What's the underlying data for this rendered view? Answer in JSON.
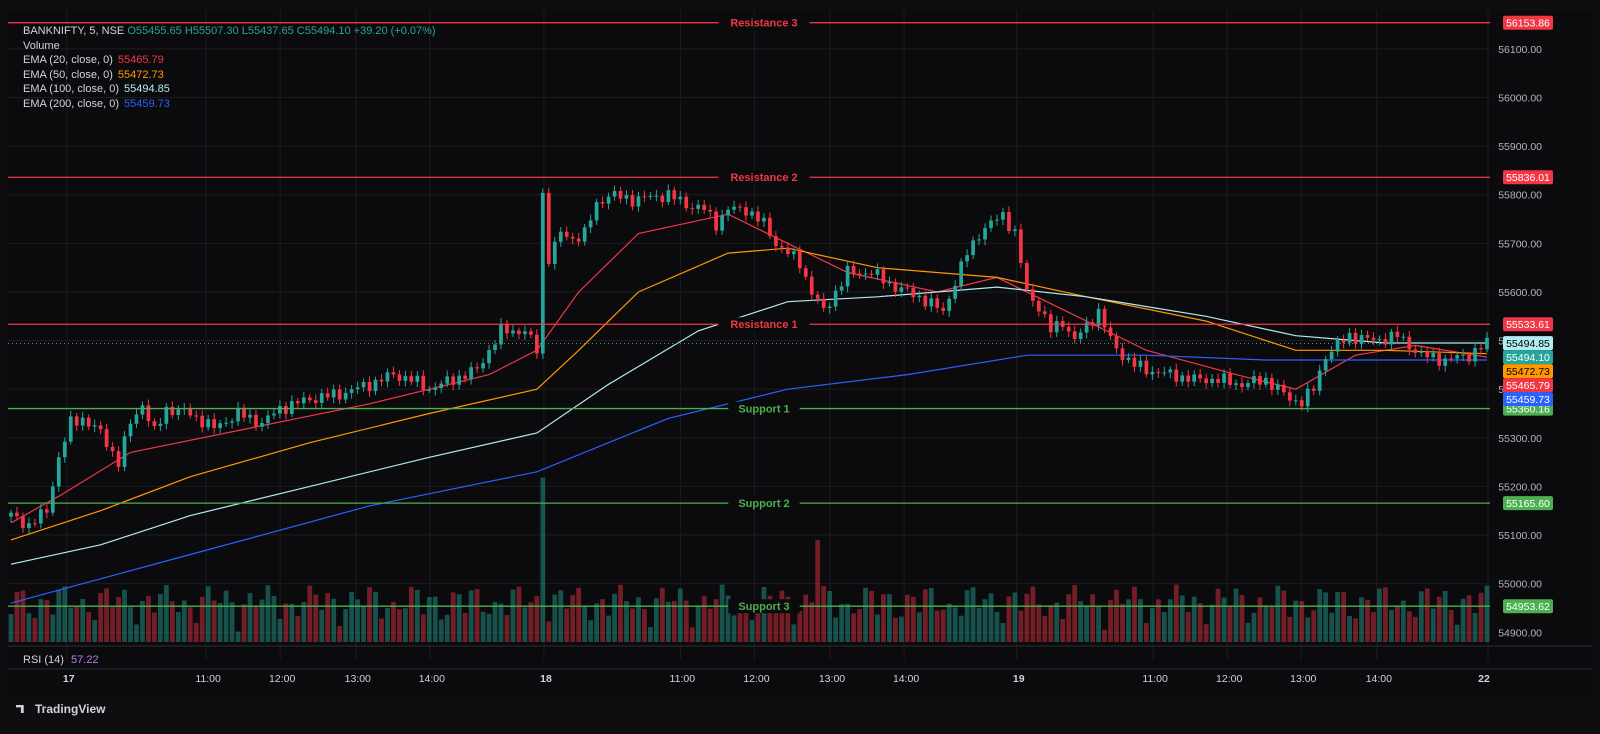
{
  "symbol": {
    "name": "BANKNIFTY",
    "interval": "5",
    "exchange": "NSE"
  },
  "header": {
    "symbol_line": "BANKNIFTY, 5, NSE",
    "ohlc": "O55455.65  H55507.30  L55437.65  C55494.10  +39.20 (+0.07%)"
  },
  "indicators": [
    {
      "label": "Volume",
      "value": "",
      "color": "#d1d4dc"
    },
    {
      "label": "EMA (20, close, 0)",
      "value": "55465.79",
      "color": "#f23645"
    },
    {
      "label": "EMA (50, close, 0)",
      "value": "55472.73",
      "color": "#ff9800"
    },
    {
      "label": "EMA (100, close, 0)",
      "value": "55494.85",
      "color": "#b2ebf2"
    },
    {
      "label": "EMA (200, close, 0)",
      "value": "55459.73",
      "color": "#2962ff"
    }
  ],
  "rsi": {
    "label": "RSI (14)",
    "value": "57.22"
  },
  "branding": "TradingView",
  "colors": {
    "up": "#26a69a",
    "down": "#f23645",
    "resistance": "#f23645",
    "support": "#4caf50",
    "background": "#0b0b0d"
  },
  "price_tags": [
    {
      "value": "55494.85",
      "bg": "#b2ebf2",
      "fg": "#000000"
    },
    {
      "value": "55494.10",
      "bg": "#26a69a",
      "fg": "#ffffff"
    },
    {
      "value": "55472.73",
      "bg": "#ff9800",
      "fg": "#000000"
    },
    {
      "value": "55465.79",
      "bg": "#f23645",
      "fg": "#ffffff"
    },
    {
      "value": "55459.73",
      "bg": "#2962ff",
      "fg": "#ffffff"
    }
  ],
  "chart_data": {
    "type": "candlestick",
    "ylim": [
      54880,
      56180
    ],
    "y_ticks": [
      54900,
      55000,
      55100,
      55200,
      55300,
      55400,
      55500,
      55600,
      55700,
      55800,
      55900,
      56000,
      56100
    ],
    "x_ticks": [
      {
        "label": "17",
        "bold": true,
        "pos": 0.041
      },
      {
        "label": "11:00",
        "bold": false,
        "pos": 0.135
      },
      {
        "label": "12:00",
        "bold": false,
        "pos": 0.185
      },
      {
        "label": "13:00",
        "bold": false,
        "pos": 0.236
      },
      {
        "label": "14:00",
        "bold": false,
        "pos": 0.286
      },
      {
        "label": "18",
        "bold": true,
        "pos": 0.363
      },
      {
        "label": "11:00",
        "bold": false,
        "pos": 0.455
      },
      {
        "label": "12:00",
        "bold": false,
        "pos": 0.505
      },
      {
        "label": "13:00",
        "bold": false,
        "pos": 0.556
      },
      {
        "label": "14:00",
        "bold": false,
        "pos": 0.606
      },
      {
        "label": "19",
        "bold": true,
        "pos": 0.682
      },
      {
        "label": "11:00",
        "bold": false,
        "pos": 0.774
      },
      {
        "label": "12:00",
        "bold": false,
        "pos": 0.824
      },
      {
        "label": "13:00",
        "bold": false,
        "pos": 0.874
      },
      {
        "label": "14:00",
        "bold": false,
        "pos": 0.925
      },
      {
        "label": "22",
        "bold": true,
        "pos": 1.0
      }
    ],
    "levels": [
      {
        "name": "Resistance 3",
        "value": 56153.86,
        "kind": "resistance"
      },
      {
        "name": "Resistance 2",
        "value": 55836.01,
        "kind": "resistance"
      },
      {
        "name": "Resistance 1",
        "value": 55533.61,
        "kind": "resistance"
      },
      {
        "name": "Support 1",
        "value": 55360.16,
        "kind": "support"
      },
      {
        "name": "Support 2",
        "value": 55165.6,
        "kind": "support"
      },
      {
        "name": "Support 3",
        "value": 54953.62,
        "kind": "support"
      }
    ],
    "last_price": 55494.1,
    "close_series": [
      [
        0,
        55140
      ],
      [
        3,
        55120
      ],
      [
        6,
        55150
      ],
      [
        8,
        55260
      ],
      [
        10,
        55330
      ],
      [
        12,
        55340
      ],
      [
        15,
        55310
      ],
      [
        18,
        55250
      ],
      [
        20,
        55330
      ],
      [
        22,
        55370
      ],
      [
        24,
        55310
      ],
      [
        26,
        55360
      ],
      [
        30,
        55350
      ],
      [
        34,
        55320
      ],
      [
        38,
        55350
      ],
      [
        42,
        55330
      ],
      [
        45,
        55360
      ],
      [
        50,
        55380
      ],
      [
        55,
        55390
      ],
      [
        60,
        55410
      ],
      [
        64,
        55430
      ],
      [
        67,
        55420
      ],
      [
        70,
        55400
      ],
      [
        74,
        55420
      ],
      [
        78,
        55440
      ],
      [
        80,
        55480
      ],
      [
        82,
        55520
      ],
      [
        86,
        55520
      ],
      [
        88,
        55480
      ],
      [
        89,
        55800
      ],
      [
        90,
        55670
      ],
      [
        92,
        55720
      ],
      [
        94,
        55710
      ],
      [
        96,
        55720
      ],
      [
        98,
        55780
      ],
      [
        100,
        55800
      ],
      [
        104,
        55790
      ],
      [
        110,
        55800
      ],
      [
        113,
        55780
      ],
      [
        116,
        55770
      ],
      [
        118,
        55740
      ],
      [
        120,
        55770
      ],
      [
        123,
        55770
      ],
      [
        126,
        55740
      ],
      [
        128,
        55700
      ],
      [
        130,
        55680
      ],
      [
        132,
        55660
      ],
      [
        134,
        55600
      ],
      [
        136,
        55560
      ],
      [
        138,
        55600
      ],
      [
        140,
        55640
      ],
      [
        144,
        55640
      ],
      [
        148,
        55610
      ],
      [
        152,
        55590
      ],
      [
        156,
        55560
      ],
      [
        158,
        55620
      ],
      [
        160,
        55680
      ],
      [
        162,
        55720
      ],
      [
        164,
        55740
      ],
      [
        166,
        55760
      ],
      [
        168,
        55720
      ],
      [
        170,
        55600
      ],
      [
        172,
        55570
      ],
      [
        174,
        55520
      ],
      [
        176,
        55540
      ],
      [
        178,
        55500
      ],
      [
        180,
        55530
      ],
      [
        182,
        55560
      ],
      [
        184,
        55500
      ],
      [
        186,
        55470
      ],
      [
        188,
        55450
      ],
      [
        190,
        55440
      ],
      [
        194,
        55430
      ],
      [
        198,
        55420
      ],
      [
        202,
        55420
      ],
      [
        206,
        55410
      ],
      [
        210,
        55420
      ],
      [
        212,
        55400
      ],
      [
        214,
        55380
      ],
      [
        216,
        55375
      ],
      [
        218,
        55400
      ],
      [
        220,
        55470
      ],
      [
        222,
        55490
      ],
      [
        224,
        55510
      ],
      [
        228,
        55500
      ],
      [
        232,
        55510
      ],
      [
        234,
        55490
      ],
      [
        236,
        55470
      ],
      [
        240,
        55460
      ],
      [
        244,
        55470
      ],
      [
        247,
        55494.1
      ]
    ],
    "ema_series": [
      {
        "name": "EMA (20, close, 0)",
        "color": "#f23645",
        "points": [
          [
            0,
            55125
          ],
          [
            8,
            55180
          ],
          [
            20,
            55270
          ],
          [
            40,
            55320
          ],
          [
            60,
            55370
          ],
          [
            80,
            55430
          ],
          [
            88,
            55480
          ],
          [
            95,
            55600
          ],
          [
            105,
            55720
          ],
          [
            120,
            55760
          ],
          [
            130,
            55700
          ],
          [
            140,
            55640
          ],
          [
            155,
            55600
          ],
          [
            165,
            55630
          ],
          [
            175,
            55570
          ],
          [
            190,
            55480
          ],
          [
            205,
            55430
          ],
          [
            215,
            55400
          ],
          [
            225,
            55470
          ],
          [
            235,
            55490
          ],
          [
            247,
            55466
          ]
        ]
      },
      {
        "name": "EMA (50, close, 0)",
        "color": "#ff9800",
        "points": [
          [
            0,
            55090
          ],
          [
            15,
            55150
          ],
          [
            30,
            55220
          ],
          [
            50,
            55290
          ],
          [
            70,
            55350
          ],
          [
            88,
            55400
          ],
          [
            95,
            55480
          ],
          [
            105,
            55600
          ],
          [
            120,
            55680
          ],
          [
            130,
            55690
          ],
          [
            145,
            55650
          ],
          [
            165,
            55630
          ],
          [
            180,
            55590
          ],
          [
            200,
            55540
          ],
          [
            215,
            55480
          ],
          [
            230,
            55480
          ],
          [
            247,
            55473
          ]
        ]
      },
      {
        "name": "EMA (100, close, 0)",
        "color": "#b2ebf2",
        "points": [
          [
            0,
            55040
          ],
          [
            15,
            55080
          ],
          [
            30,
            55140
          ],
          [
            50,
            55200
          ],
          [
            70,
            55260
          ],
          [
            88,
            55310
          ],
          [
            100,
            55410
          ],
          [
            115,
            55520
          ],
          [
            130,
            55580
          ],
          [
            145,
            55590
          ],
          [
            165,
            55610
          ],
          [
            180,
            55590
          ],
          [
            200,
            55550
          ],
          [
            215,
            55510
          ],
          [
            230,
            55495
          ],
          [
            247,
            55495
          ]
        ]
      },
      {
        "name": "EMA (200, close, 0)",
        "color": "#2962ff",
        "points": [
          [
            0,
            54960
          ],
          [
            30,
            55060
          ],
          [
            60,
            55160
          ],
          [
            88,
            55230
          ],
          [
            110,
            55340
          ],
          [
            130,
            55400
          ],
          [
            150,
            55430
          ],
          [
            170,
            55470
          ],
          [
            190,
            55470
          ],
          [
            210,
            55460
          ],
          [
            230,
            55460
          ],
          [
            247,
            55460
          ]
        ]
      }
    ],
    "volume": {
      "max_height_fraction": 0.26,
      "spikes": [
        [
          89,
          1.0
        ],
        [
          135,
          0.62
        ]
      ]
    },
    "rsi_panel_present": true
  }
}
